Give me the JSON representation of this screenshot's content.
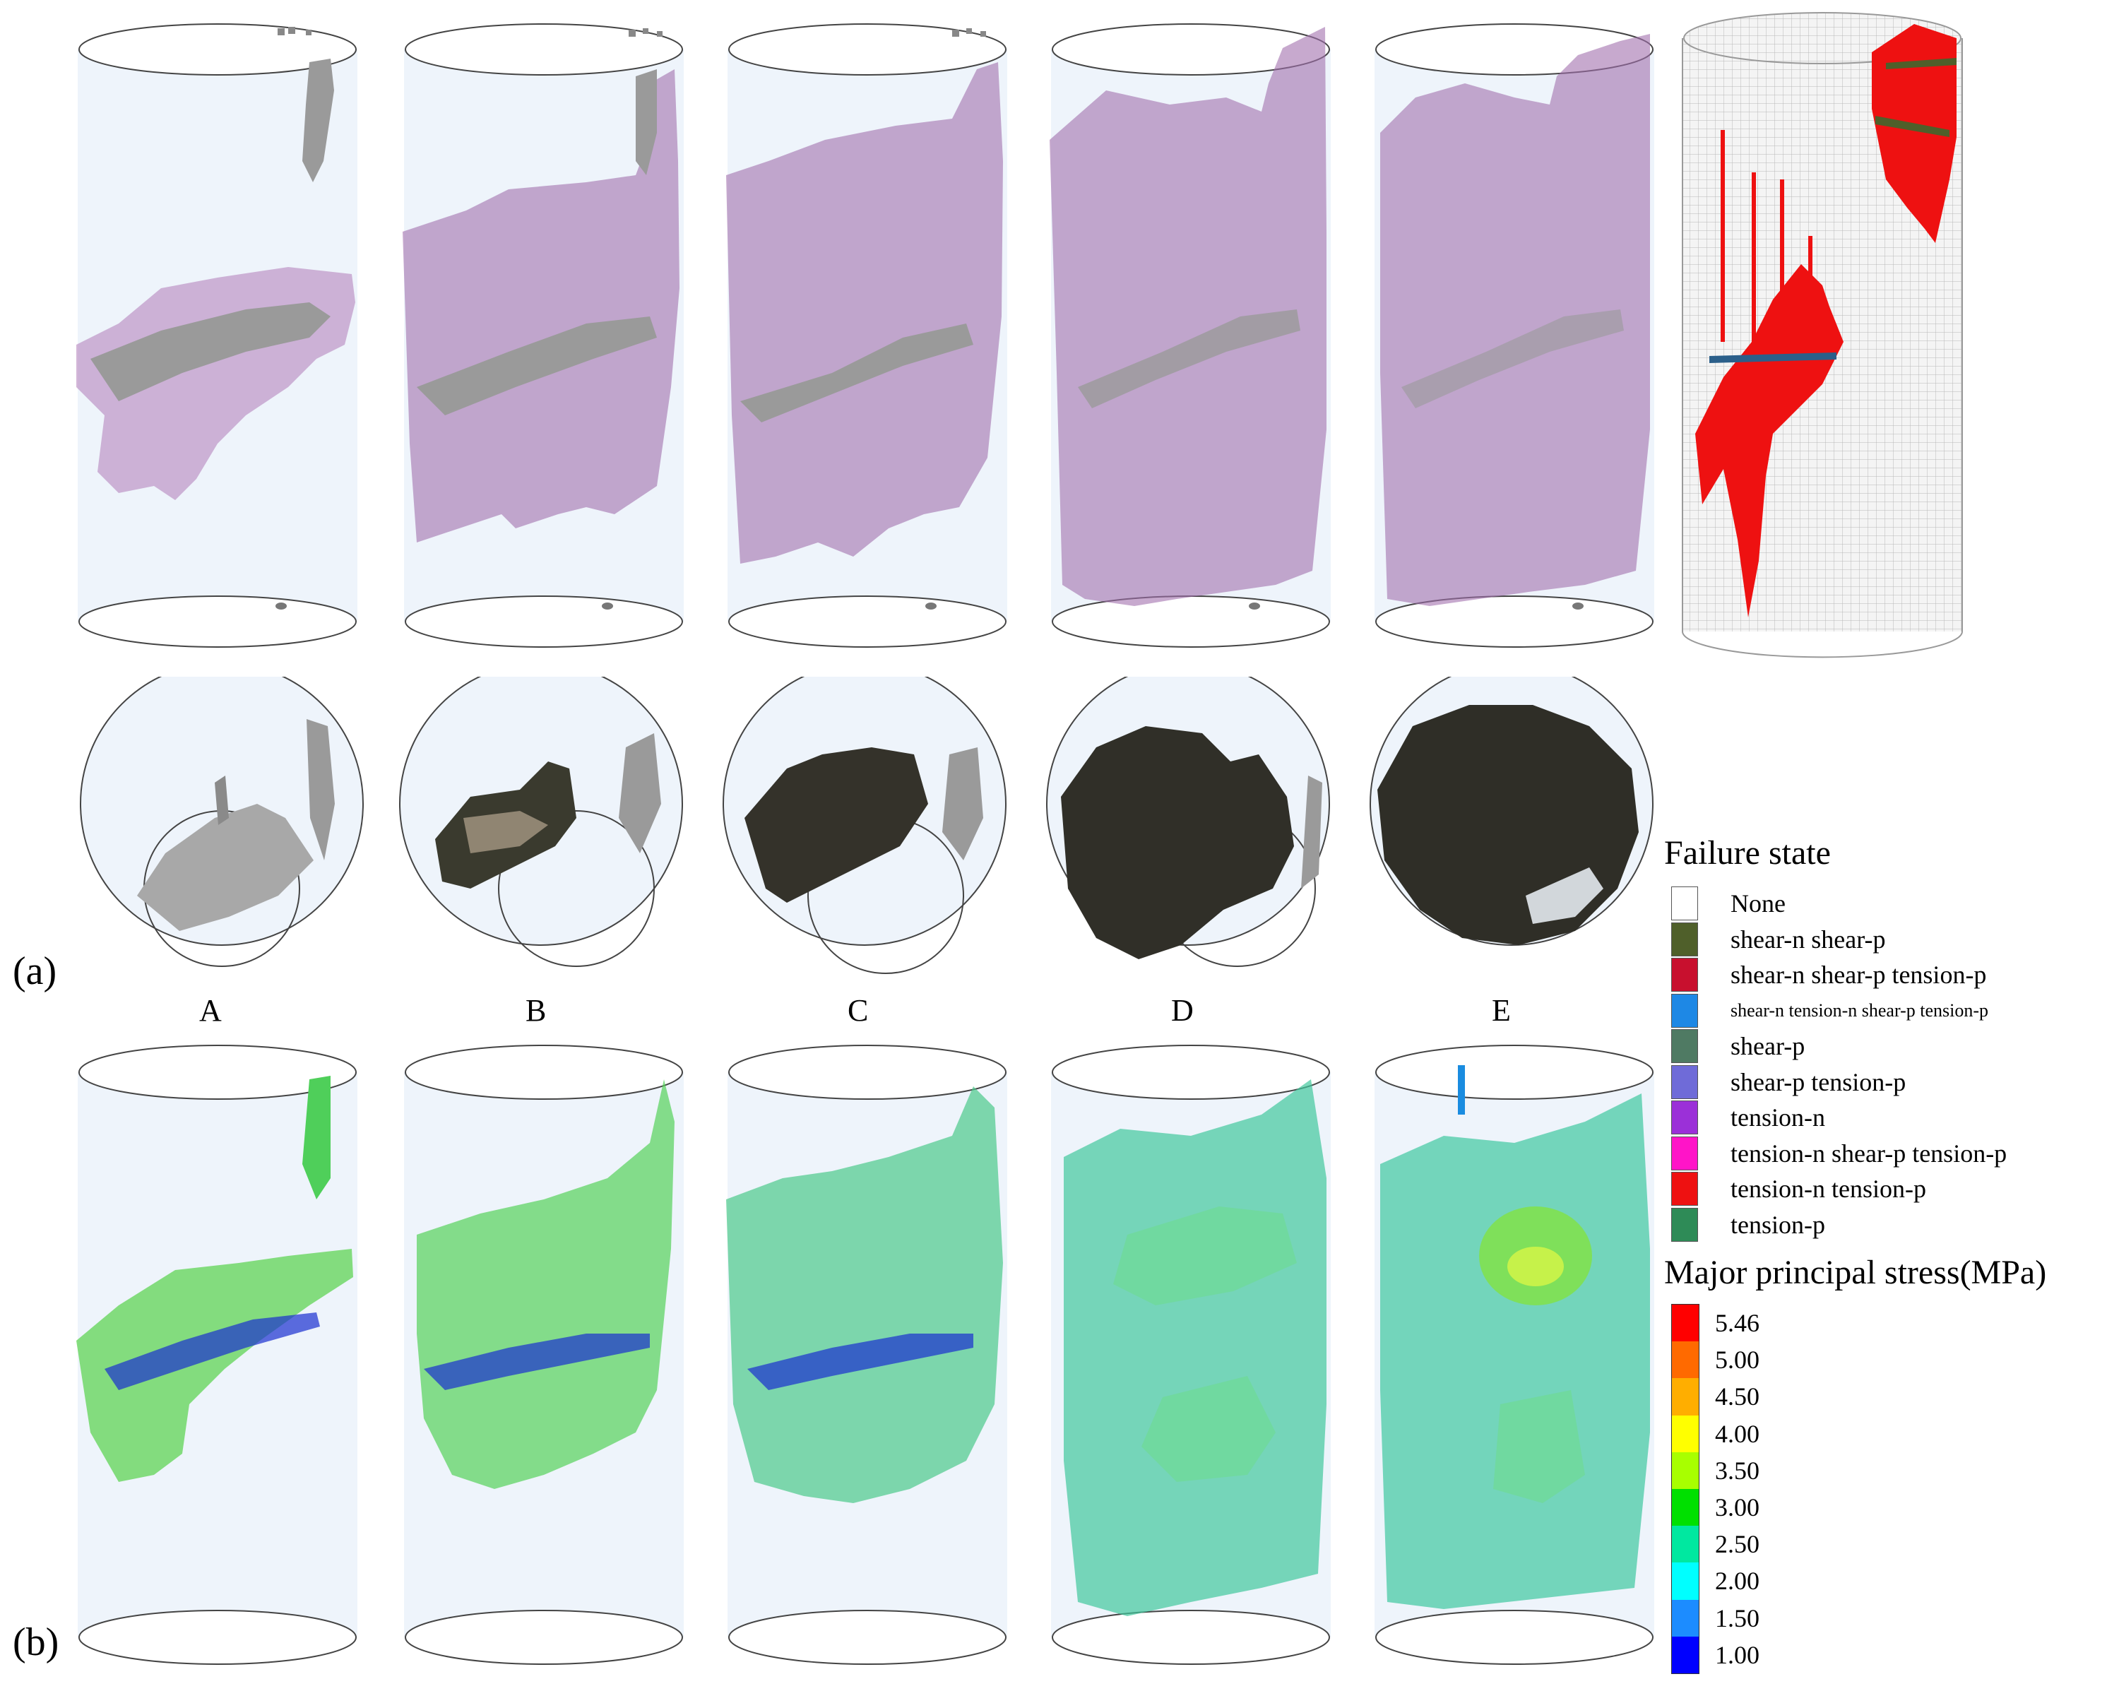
{
  "panel_labels": {
    "a": "(a)",
    "b": "(b)"
  },
  "columns": [
    "A",
    "B",
    "C",
    "D",
    "E"
  ],
  "failure_legend": {
    "title": "Failure state",
    "items": [
      {
        "label": "None",
        "color": "#ffffff"
      },
      {
        "label": "shear-n shear-p",
        "color": "#4f5f2a"
      },
      {
        "label": "shear-n shear-p tension-p",
        "color": "#c8102e"
      },
      {
        "label": "shear-n tension-n shear-p tension-p",
        "color": "#1e88e5"
      },
      {
        "label": "shear-p",
        "color": "#4f7a63"
      },
      {
        "label": "shear-p tension-p",
        "color": "#6f6bd8"
      },
      {
        "label": "tension-n",
        "color": "#9b30d8"
      },
      {
        "label": "tension-n shear-p tension-p",
        "color": "#ff14c8"
      },
      {
        "label": "tension-n tension-p",
        "color": "#ee1111"
      },
      {
        "label": "tension-p",
        "color": "#2e8b57"
      }
    ]
  },
  "stress_legend": {
    "title": "Major principal stress(MPa)",
    "ticks": [
      "5.46",
      "5.00",
      "4.50",
      "4.00",
      "3.50",
      "3.00",
      "2.50",
      "2.00",
      "1.50",
      "1.00"
    ],
    "colors": [
      "#ff0000",
      "#ff6a00",
      "#ffae00",
      "#ffff00",
      "#a8ff00",
      "#00e000",
      "#00e8a0",
      "#00ffff",
      "#1c8cff",
      "#0000ff"
    ]
  }
}
